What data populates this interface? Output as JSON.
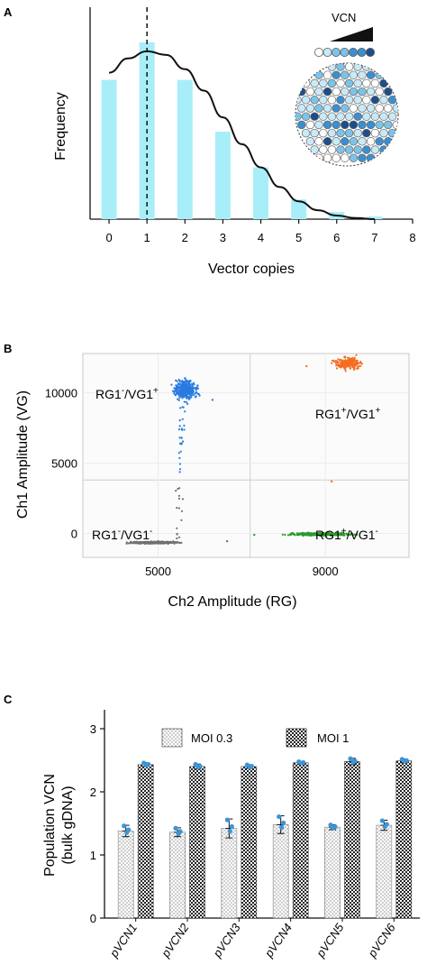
{
  "colors": {
    "histogram_bar": "#a8eef8",
    "pdf_curve": "#111111",
    "vg_pos": "#2a7be0",
    "double_pos": "#f36d21",
    "rg_pos": "#2b9a2b",
    "double_neg": "#707070",
    "error_point": "#3b96d8",
    "circle_palette": [
      "#ffffff",
      "#c8e9f8",
      "#7cc3e8",
      "#3b8fcf",
      "#1c4f8a"
    ]
  },
  "chart_data": [
    {
      "panel": "A",
      "type": "bar",
      "xlabel": "Vector copies",
      "ylabel": "Frequency",
      "x_ticks": [
        "0",
        "1",
        "2",
        "3",
        "4",
        "5",
        "6",
        "7",
        "8"
      ],
      "xlim": [
        -0.5,
        8
      ],
      "categories": [
        0,
        1,
        2,
        3,
        4,
        5,
        6,
        7
      ],
      "values": [
        0.78,
        0.99,
        0.78,
        0.49,
        0.29,
        0.11,
        0.04,
        0.015
      ],
      "curve": {
        "type": "line",
        "x": [
          0,
          0.5,
          1,
          1.5,
          2,
          2.5,
          3,
          3.5,
          4,
          4.5,
          5,
          5.5,
          6,
          6.5,
          7
        ],
        "y": [
          0.82,
          0.9,
          0.94,
          0.92,
          0.84,
          0.72,
          0.57,
          0.42,
          0.29,
          0.18,
          0.1,
          0.05,
          0.02,
          0.006,
          0.0
        ]
      },
      "dashed_line_x": 1,
      "inset_label": "VCN",
      "inset_description": "cells with increasing vector copy numbers"
    },
    {
      "panel": "B",
      "type": "scatter",
      "xlabel": "Ch2 Amplitude (RG)",
      "ylabel": "Ch1 Amplitude (VG)",
      "x_ticks": [
        "5000",
        "9000"
      ],
      "y_ticks": [
        "0",
        "5000",
        "10000"
      ],
      "xlim": [
        3200,
        11000
      ],
      "ylim": [
        -1700,
        12800
      ],
      "quadrants": [
        {
          "base1": "RG1",
          "sup1": "-",
          "base2": "/VG1",
          "sup2": "+"
        },
        {
          "base1": "RG1",
          "sup1": "+",
          "base2": "/VG1",
          "sup2": "+"
        },
        {
          "base1": "RG1",
          "sup1": "-",
          "base2": "/VG1",
          "sup2": "-"
        },
        {
          "base1": "RG1",
          "sup1": "+",
          "base2": "/VG1",
          "sup2": "-"
        }
      ],
      "clusters": [
        {
          "name": "RG1-/VG1+",
          "center": [
            5650,
            10200
          ],
          "spread": [
            260,
            650
          ]
        },
        {
          "name": "RG1+/VG1+",
          "center": [
            9550,
            12100
          ],
          "spread": [
            330,
            380
          ]
        },
        {
          "name": "RG1-/VG1-",
          "center": [
            4900,
            -650
          ],
          "spread": [
            550,
            70
          ]
        },
        {
          "name": "RG1+/VG1-",
          "center": [
            8900,
            -50
          ],
          "spread": [
            700,
            90
          ]
        }
      ]
    },
    {
      "panel": "C",
      "type": "bar",
      "ylabel_line1": "Population VCN",
      "ylabel_line2": "(bulk gDNA)",
      "y_ticks": [
        "0",
        "1",
        "2",
        "3"
      ],
      "ylim": [
        0,
        3.3
      ],
      "categories": [
        "pVCN1",
        "pVCN2",
        "pVCN3",
        "pVCN4",
        "pVCN5",
        "pVCN6"
      ],
      "series": [
        {
          "name": "MOI 0.3",
          "values": [
            1.38,
            1.36,
            1.42,
            1.48,
            1.44,
            1.47
          ],
          "errors": [
            0.09,
            0.07,
            0.15,
            0.14,
            0.04,
            0.08
          ]
        },
        {
          "name": "MOI 1",
          "values": [
            2.43,
            2.4,
            2.4,
            2.46,
            2.48,
            2.49
          ],
          "errors": [
            0.03,
            0.04,
            0.03,
            0.02,
            0.05,
            0.03
          ]
        }
      ],
      "legend_position": "top"
    }
  ]
}
